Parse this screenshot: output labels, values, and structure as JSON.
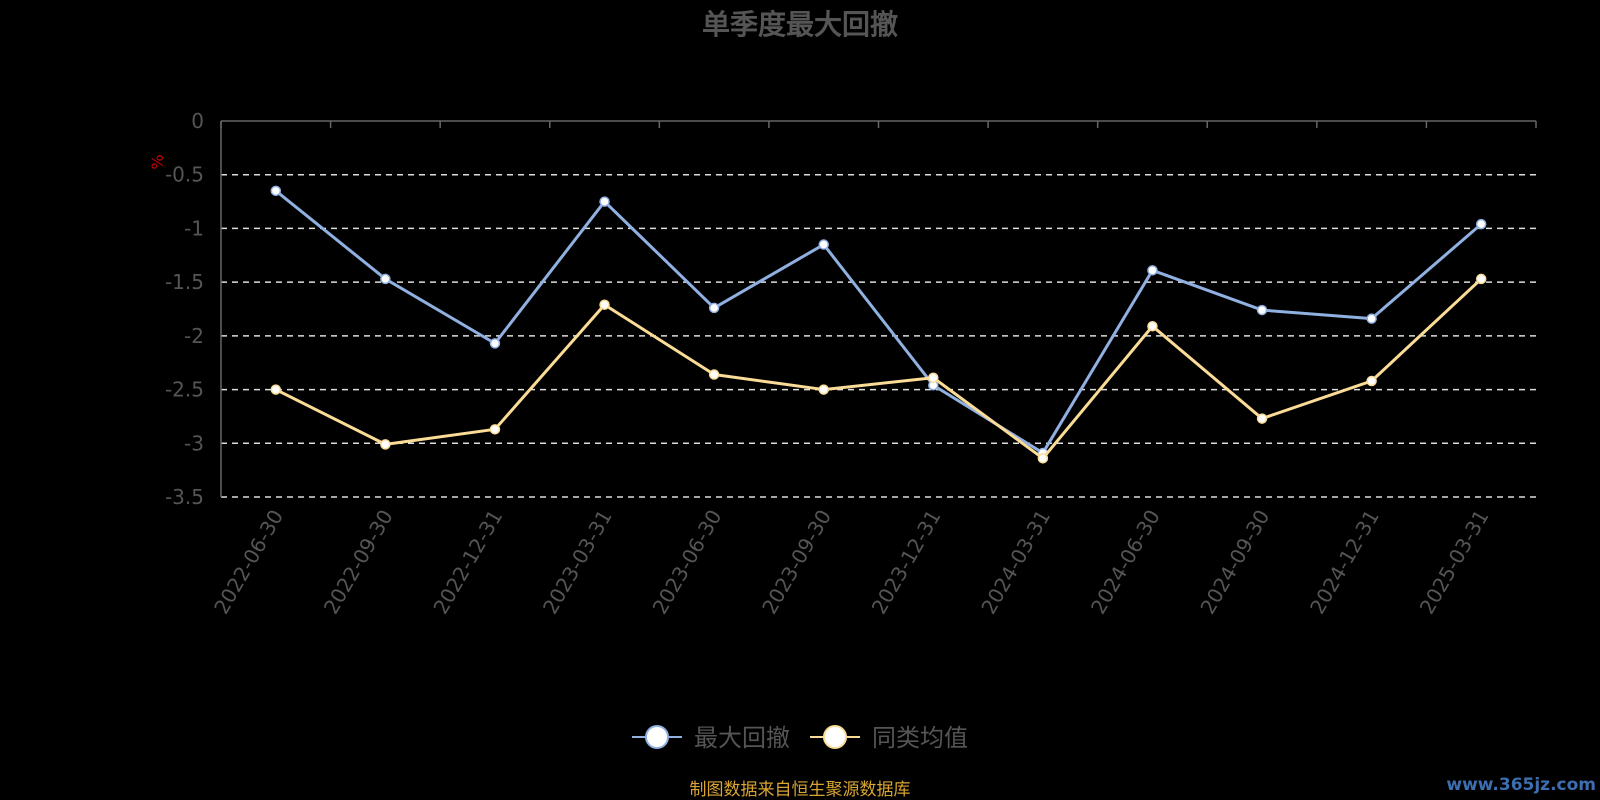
{
  "chart_data": {
    "type": "line",
    "title": "单季度最大回撤",
    "ylabel": "%",
    "ylim": [
      -3.5,
      0
    ],
    "yticks": [
      "0",
      "-0.5",
      "-1",
      "-1.5",
      "-2",
      "-2.5",
      "-3",
      "-3.5"
    ],
    "ytick_values": [
      0,
      -0.5,
      -1,
      -1.5,
      -2,
      -2.5,
      -3,
      -3.5
    ],
    "categories": [
      "2022-06-30",
      "2022-09-30",
      "2022-12-31",
      "2023-03-31",
      "2023-06-30",
      "2023-09-30",
      "2023-12-31",
      "2024-03-31",
      "2024-06-30",
      "2024-09-30",
      "2024-12-31",
      "2025-03-31"
    ],
    "grid": true,
    "legend_position": "bottom",
    "series": [
      {
        "name": "最大回撤",
        "color": "#8fb0e0",
        "values": [
          -0.65,
          -1.47,
          -2.07,
          -0.75,
          -1.74,
          -1.15,
          -2.46,
          -3.09,
          -1.39,
          -1.76,
          -1.84,
          -0.96
        ]
      },
      {
        "name": "同类均值",
        "color": "#fbdc97",
        "values": [
          -2.5,
          -3.01,
          -2.87,
          -1.71,
          -2.36,
          -2.5,
          -2.39,
          -3.14,
          -1.91,
          -2.77,
          -2.42,
          -1.47
        ]
      }
    ]
  },
  "source_note": "制图数据来自恒生聚源数据库",
  "watermark": "www.365jz.com",
  "colors": {
    "title": "#555555",
    "axis_text": "#555555",
    "ylabel": "#cc0000",
    "source": "#d9a432",
    "watermark": "#3d6fb0",
    "grid": "#dddddd"
  }
}
